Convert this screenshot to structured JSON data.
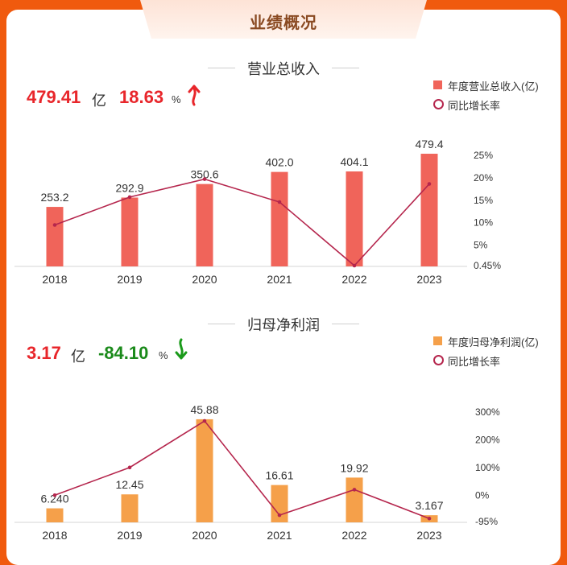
{
  "header": {
    "title": "业绩概况"
  },
  "revenue": {
    "title": "营业总收入",
    "value": "479.41",
    "unit": "亿",
    "growth": "18.63",
    "growth_unit": "%",
    "legend_bar": "年度营业总收入(亿)",
    "legend_line": "同比增长率",
    "value_color": "#e8262b",
    "growth_color": "#e8262b",
    "arrow_icon": "up-arrow-icon"
  },
  "profit": {
    "title": "归母净利润",
    "value": "3.17",
    "unit": "亿",
    "growth": "-84.10",
    "growth_unit": "%",
    "legend_bar": "年度归母净利润(亿)",
    "legend_line": "同比增长率",
    "value_color": "#e8262b",
    "growth_color": "#1a8a1a",
    "arrow_icon": "down-arrow-icon"
  },
  "chart_data": [
    {
      "type": "bar",
      "categories": [
        "2018",
        "2019",
        "2020",
        "2021",
        "2022",
        "2023"
      ],
      "series": [
        {
          "name": "年度营业总收入(亿)",
          "values": [
            253.2,
            292.9,
            350.6,
            402.0,
            404.1,
            479.4
          ],
          "labels": [
            "253.2",
            "292.9",
            "350.6",
            "402.0",
            "404.1",
            "479.4"
          ],
          "color": "#f0645a"
        },
        {
          "name": "同比增长率",
          "type": "line",
          "values": [
            9.5,
            15.7,
            19.7,
            14.6,
            0.45,
            18.63
          ],
          "color": "#b5264d"
        }
      ],
      "y2_ticks": [
        "25%",
        "20%",
        "15%",
        "10%",
        "5%",
        "0.45%"
      ],
      "y2_tick_values": [
        25,
        20,
        15,
        10,
        5,
        0.45
      ],
      "ylim": [
        0,
        500
      ],
      "y2lim": [
        0.45,
        25
      ]
    },
    {
      "type": "bar",
      "categories": [
        "2018",
        "2019",
        "2020",
        "2021",
        "2022",
        "2023"
      ],
      "series": [
        {
          "name": "年度归母净利润(亿)",
          "values": [
            6.24,
            12.45,
            45.88,
            16.61,
            19.92,
            3.167
          ],
          "labels": [
            "6.240",
            "12.45",
            "45.88",
            "16.61",
            "19.92",
            "3.167"
          ],
          "color": "#f5a04a"
        },
        {
          "name": "同比增长率",
          "type": "line",
          "values": [
            0,
            100,
            268,
            -72,
            20,
            -84.1
          ],
          "color": "#b5264d"
        }
      ],
      "y2_ticks": [
        "300%",
        "200%",
        "100%",
        "0%",
        "-95%"
      ],
      "y2_tick_values": [
        300,
        200,
        100,
        0,
        -95
      ],
      "ylim": [
        0,
        48
      ],
      "y2lim": [
        -95,
        300
      ]
    }
  ]
}
